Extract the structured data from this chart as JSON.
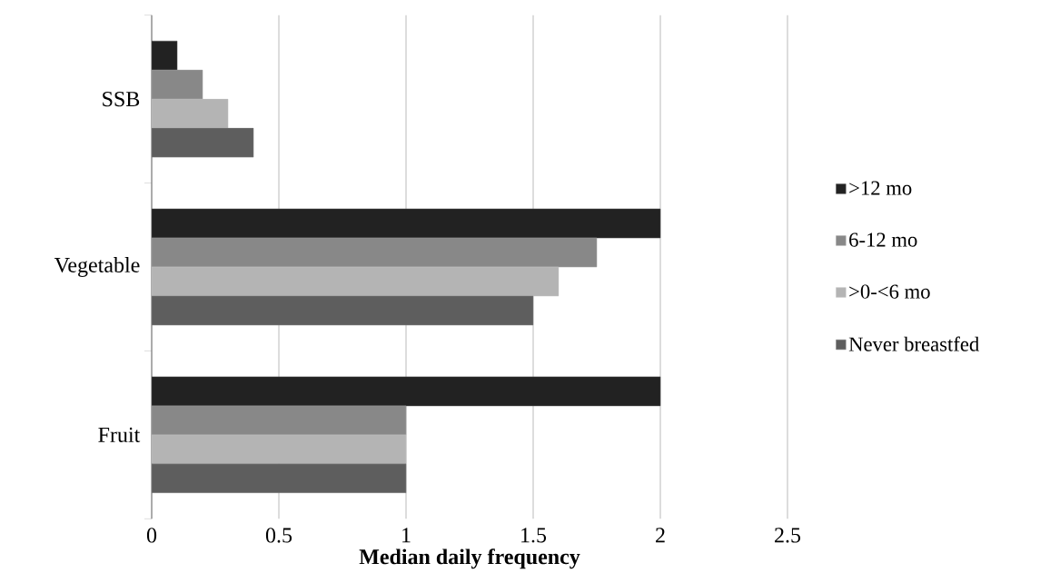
{
  "chart_data": {
    "type": "bar",
    "orientation": "horizontal",
    "xlabel": "Median daily frequency",
    "categories": [
      "SSB",
      "Vegetable",
      "Fruit"
    ],
    "series": [
      {
        "name": ">12 mo",
        "color": "#222222",
        "values": [
          0.1,
          2,
          2
        ]
      },
      {
        "name": "6-12 mo",
        "color": "#888888",
        "values": [
          0.2,
          1.75,
          1
        ]
      },
      {
        "name": ">0-<6 mo",
        "color": "#b4b4b4",
        "values": [
          0.3,
          1.6,
          1
        ]
      },
      {
        "name": "Never breastfed",
        "color": "#5e5e5e",
        "values": [
          0.4,
          1.5,
          1
        ]
      }
    ],
    "xlim": [
      0,
      2.5
    ],
    "xticks": [
      0,
      0.5,
      1,
      1.5,
      2,
      2.5
    ],
    "grid": "x",
    "legend": "right"
  }
}
